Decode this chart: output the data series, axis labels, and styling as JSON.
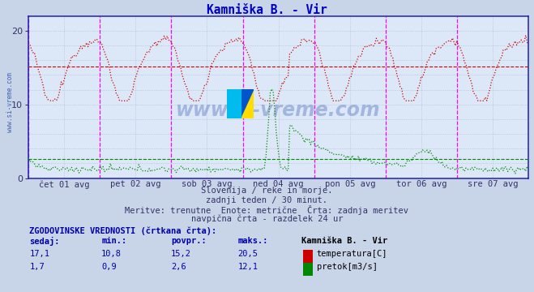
{
  "title": "Kamniška B. - Vir",
  "title_color": "#0000cc",
  "bg_color": "#c8d4e8",
  "plot_bg_color": "#dce8f8",
  "grid_color": "#b0b8cc",
  "x_labels": [
    "čet 01 avg",
    "pet 02 avg",
    "sob 03 avg",
    "ned 04 avg",
    "pon 05 avg",
    "tor 06 avg",
    "sre 07 avg"
  ],
  "y_ticks": [
    0,
    10,
    20
  ],
  "y_lim": [
    0,
    22
  ],
  "temp_color": "#cc0000",
  "flow_color": "#008800",
  "vline_color": "#ff00ff",
  "bottom_text1": "Slovenija / reke in morje.",
  "bottom_text2": "zadnji teden / 30 minut.",
  "bottom_text3": "Meritve: trenutne  Enote: metrične  Črta: zadnja meritev",
  "bottom_text4": "navpična črta - razdelek 24 ur",
  "legend_title": "Kamniška B. - Vir",
  "watermark": "www.si-vreme.com",
  "n_points": 336,
  "temp_min": 10.8,
  "temp_max": 20.5,
  "temp_avg": 15.2,
  "temp_current": 17.1,
  "flow_min": 0.9,
  "flow_max": 12.1,
  "flow_avg": 2.6,
  "flow_current": 1.7,
  "axis_color": "#0000cc",
  "tick_color": "#333366",
  "left_watermark": "www.si-vreme.com"
}
